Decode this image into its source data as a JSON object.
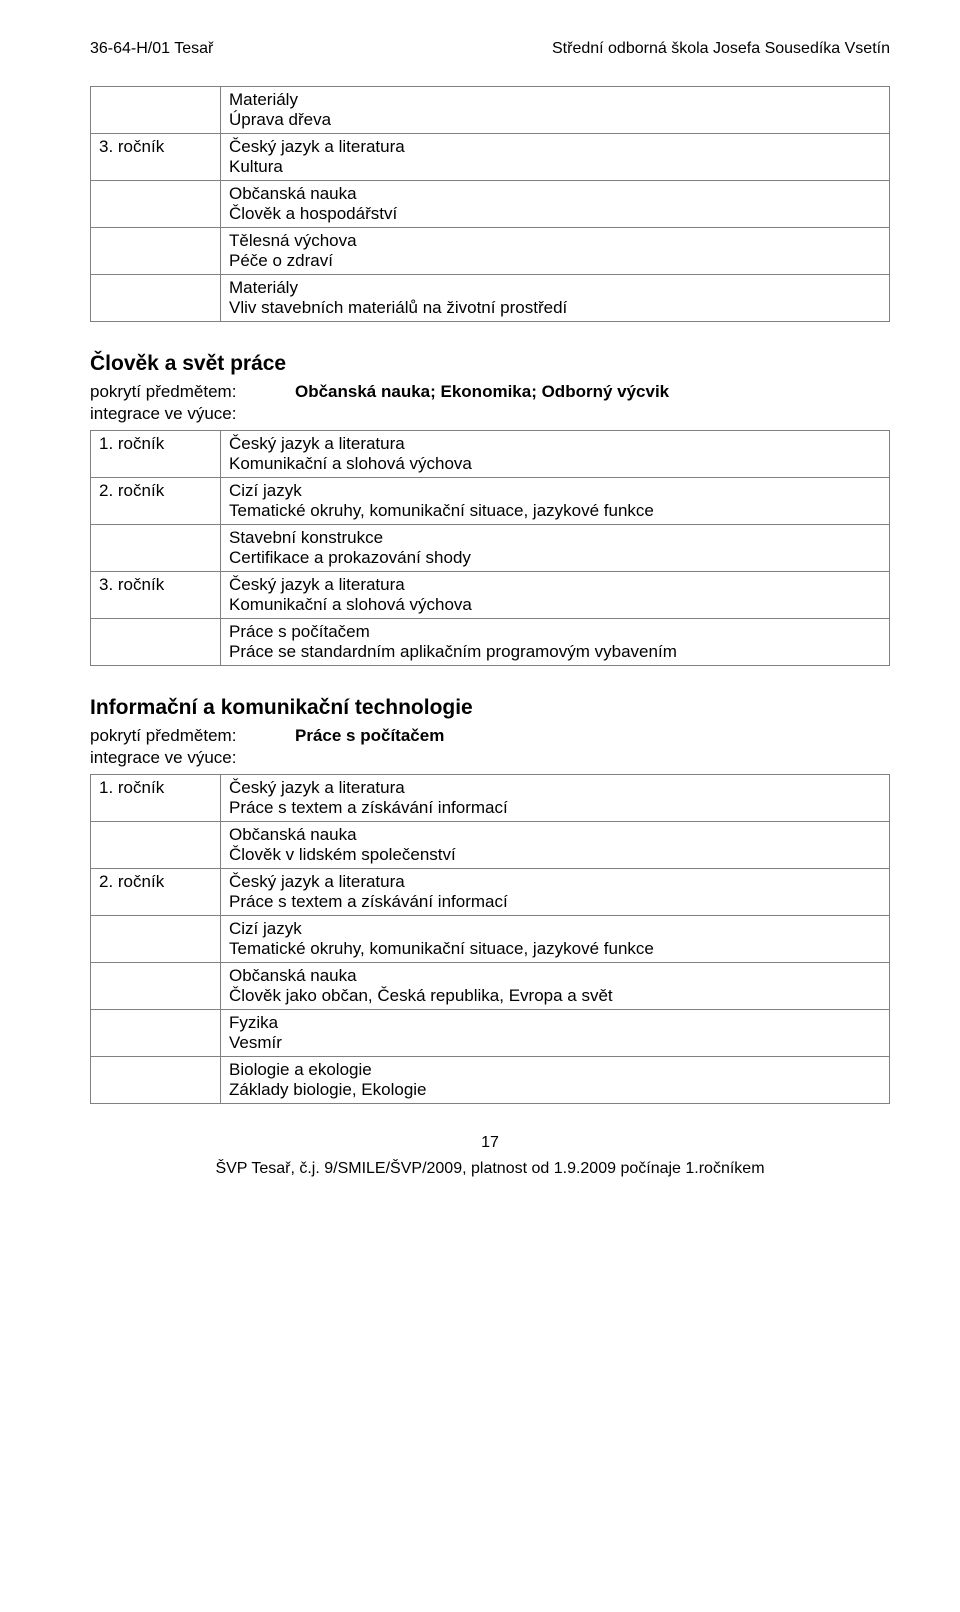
{
  "header": {
    "left": "36-64-H/01 Tesař",
    "right": "Střední odborná škola Josefa Sousedíka Vsetín"
  },
  "table1": {
    "rows": [
      {
        "left": "",
        "lines": [
          "Materiály",
          "Úprava dřeva"
        ]
      },
      {
        "left": "3. ročník",
        "lines": [
          "Český jazyk a literatura",
          "Kultura"
        ]
      },
      {
        "left": "",
        "lines": [
          "Občanská nauka",
          "Člověk a hospodářství"
        ]
      },
      {
        "left": "",
        "lines": [
          "Tělesná výchova",
          "Péče o zdraví"
        ]
      },
      {
        "left": "",
        "lines": [
          "Materiály",
          "Vliv stavebních materiálů na životní prostředí"
        ]
      }
    ]
  },
  "section2": {
    "title": "Člověk a svět práce",
    "pokryti_label": "pokrytí předmětem:",
    "pokryti_value": "Občanská nauka; Ekonomika; Odborný výcvik",
    "integrace": "integrace ve výuce:"
  },
  "table2": {
    "rows": [
      {
        "left": "1. ročník",
        "lines": [
          "Český jazyk a literatura",
          "Komunikační a slohová výchova"
        ]
      },
      {
        "left": "2. ročník",
        "lines": [
          "Cizí jazyk",
          "Tematické okruhy, komunikační situace, jazykové funkce"
        ]
      },
      {
        "left": "",
        "lines": [
          "Stavební konstrukce",
          "Certifikace a prokazování shody"
        ]
      },
      {
        "left": "3. ročník",
        "lines": [
          "Český jazyk a literatura",
          "Komunikační a slohová výchova"
        ]
      },
      {
        "left": "",
        "lines": [
          "Práce s počítačem",
          "Práce se standardním aplikačním programovým vybavením"
        ]
      }
    ]
  },
  "section3": {
    "title": "Informační a komunikační technologie",
    "pokryti_label": "pokrytí předmětem:",
    "pokryti_value": "Práce s počítačem",
    "integrace": "integrace ve výuce:"
  },
  "table3": {
    "rows": [
      {
        "left": "1. ročník",
        "lines": [
          "Český jazyk a literatura",
          "Práce s textem a získávání informací"
        ]
      },
      {
        "left": "",
        "lines": [
          "Občanská nauka",
          "Člověk v lidském společenství"
        ]
      },
      {
        "left": "2. ročník",
        "lines": [
          "Český jazyk a literatura",
          "Práce s textem a získávání informací"
        ]
      },
      {
        "left": "",
        "lines": [
          "Cizí jazyk",
          "Tematické okruhy, komunikační situace, jazykové funkce"
        ]
      },
      {
        "left": "",
        "lines": [
          "Občanská nauka",
          "Člověk jako občan, Česká republika, Evropa a svět"
        ]
      },
      {
        "left": "",
        "lines": [
          "Fyzika",
          "Vesmír"
        ]
      },
      {
        "left": "",
        "lines": [
          "Biologie a ekologie",
          "Základy biologie, Ekologie"
        ]
      }
    ]
  },
  "footer": {
    "page_num": "17",
    "line": "ŠVP Tesař, č.j. 9/SMILE/ŠVP/2009, platnost od 1.9.2009 počínaje 1.ročníkem"
  }
}
